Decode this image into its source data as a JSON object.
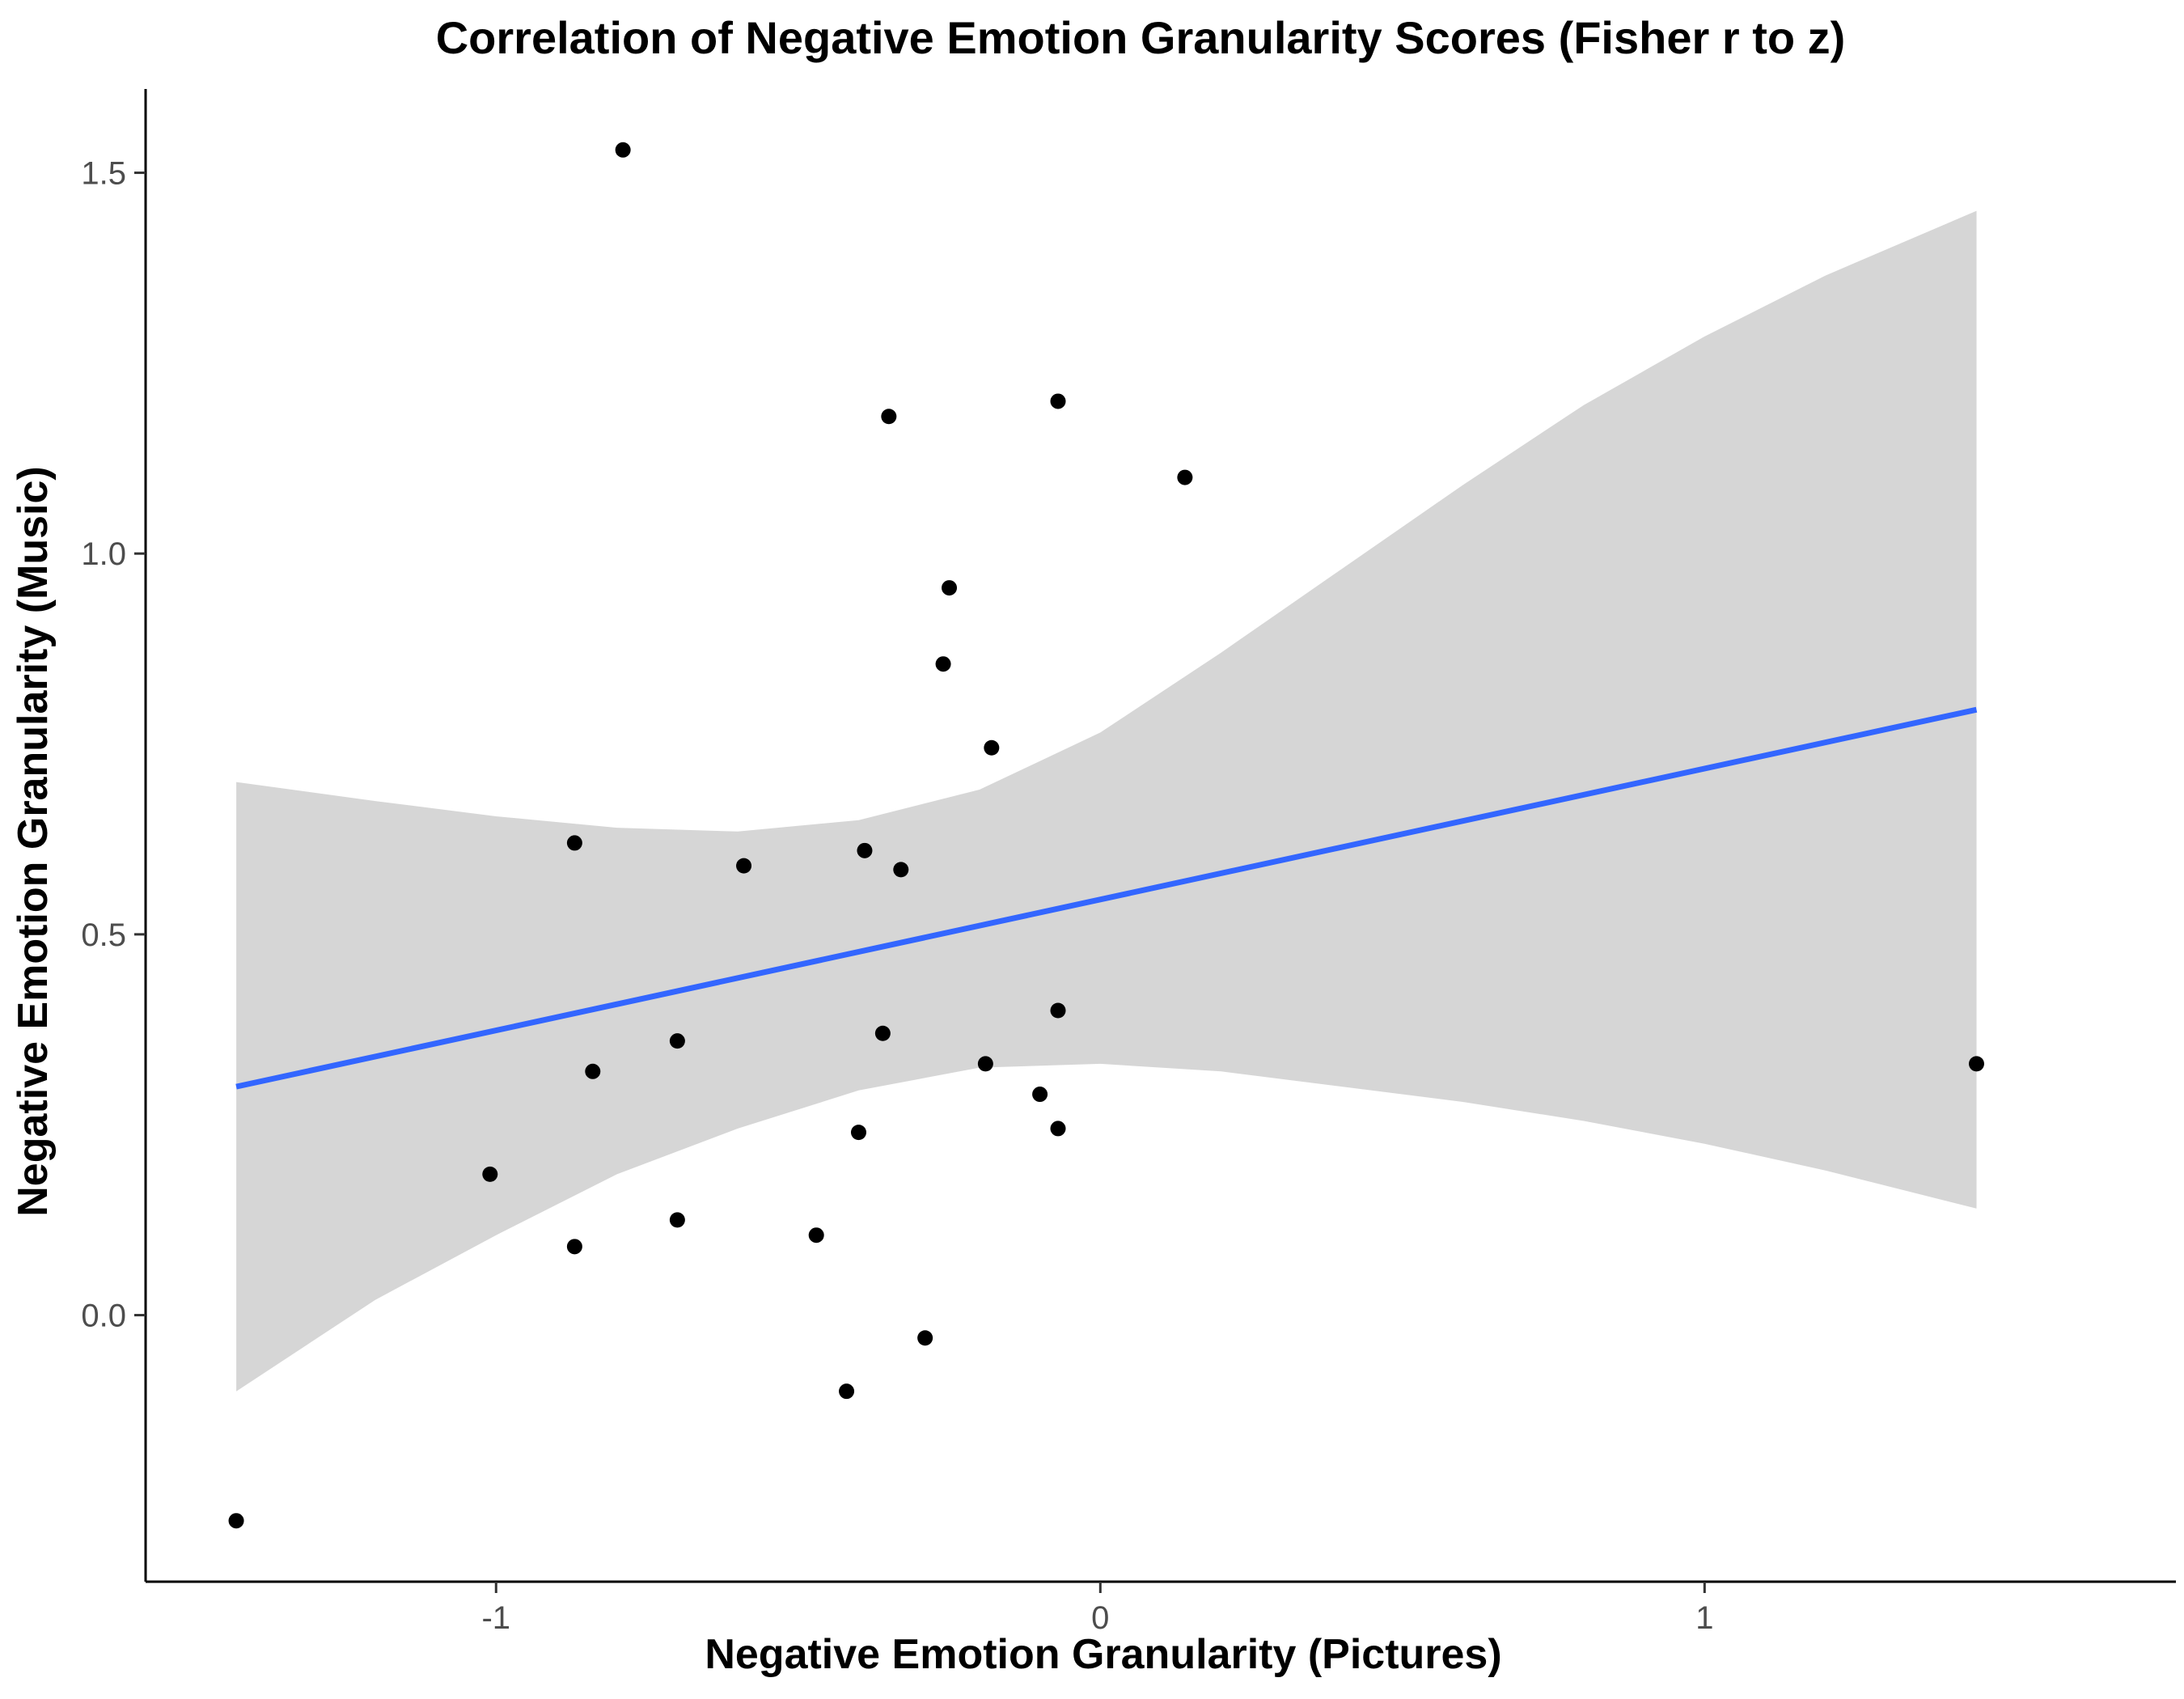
{
  "chart_data": {
    "type": "scatter",
    "title": "Correlation of Negative Emotion Granularity Scores (Fisher r to z)",
    "xlabel": "Negative Emotion Granularity (Pictures)",
    "ylabel": "Negative Emotion Granularity (Music)",
    "xlim": [
      -1.58,
      1.78
    ],
    "ylim": [
      -0.35,
      1.61
    ],
    "x_ticks": [
      -1,
      0,
      1
    ],
    "x_tick_labels": [
      "-1",
      "0",
      "1"
    ],
    "y_ticks": [
      0.0,
      0.5,
      1.0,
      1.5
    ],
    "y_tick_labels": [
      "0.0",
      "0.5",
      "1.0",
      "1.5"
    ],
    "grid": false,
    "legend": "none",
    "points": [
      {
        "x": -1.43,
        "y": -0.27
      },
      {
        "x": -0.79,
        "y": 1.53
      },
      {
        "x": -1.01,
        "y": 0.185
      },
      {
        "x": -0.87,
        "y": 0.62
      },
      {
        "x": -0.87,
        "y": 0.09
      },
      {
        "x": -0.84,
        "y": 0.32
      },
      {
        "x": -0.7,
        "y": 0.36
      },
      {
        "x": -0.7,
        "y": 0.125
      },
      {
        "x": -0.59,
        "y": 0.59
      },
      {
        "x": -0.47,
        "y": 0.105
      },
      {
        "x": -0.42,
        "y": -0.1
      },
      {
        "x": -0.4,
        "y": 0.24
      },
      {
        "x": -0.39,
        "y": 0.61
      },
      {
        "x": -0.36,
        "y": 0.37
      },
      {
        "x": -0.35,
        "y": 1.18
      },
      {
        "x": -0.33,
        "y": 0.585
      },
      {
        "x": -0.29,
        "y": -0.03
      },
      {
        "x": -0.26,
        "y": 0.855
      },
      {
        "x": -0.25,
        "y": 0.955
      },
      {
        "x": -0.19,
        "y": 0.33
      },
      {
        "x": -0.18,
        "y": 0.745
      },
      {
        "x": -0.1,
        "y": 0.29
      },
      {
        "x": -0.07,
        "y": 1.2
      },
      {
        "x": -0.07,
        "y": 0.4
      },
      {
        "x": -0.07,
        "y": 0.245
      },
      {
        "x": 0.14,
        "y": 1.1
      },
      {
        "x": 1.45,
        "y": 0.33
      }
    ],
    "regression": {
      "x": [
        -1.43,
        1.45
      ],
      "y": [
        0.3,
        0.795
      ],
      "color": "#3366FF"
    },
    "confidence_band": {
      "color": "#d6d6d6",
      "x": [
        -1.43,
        -1.2,
        -1.0,
        -0.8,
        -0.6,
        -0.4,
        -0.2,
        0.0,
        0.2,
        0.4,
        0.6,
        0.8,
        1.0,
        1.2,
        1.45
      ],
      "upper": [
        0.7,
        0.675,
        0.655,
        0.64,
        0.635,
        0.65,
        0.69,
        0.765,
        0.87,
        0.98,
        1.09,
        1.195,
        1.285,
        1.365,
        1.45
      ],
      "lower": [
        -0.1,
        0.02,
        0.105,
        0.185,
        0.245,
        0.295,
        0.325,
        0.33,
        0.32,
        0.3,
        0.28,
        0.255,
        0.225,
        0.19,
        0.14
      ]
    },
    "point_color": "#000000"
  }
}
